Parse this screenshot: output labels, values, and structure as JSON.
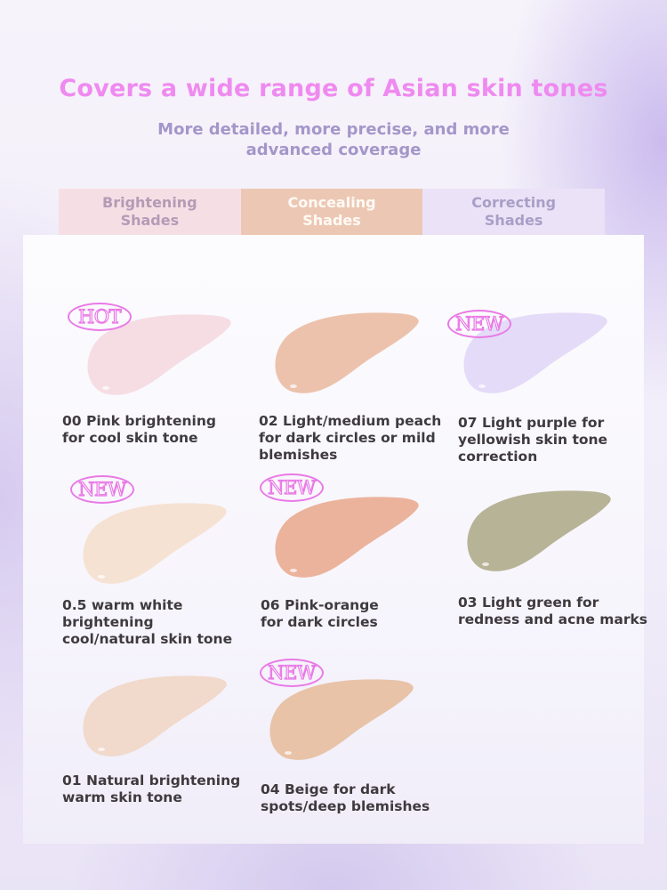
{
  "headline": "Covers a wide range of Asian skin tones",
  "subheadline": "More detailed, more precise, and more advanced coverage",
  "tabs": [
    {
      "label": "Brightening\nShades"
    },
    {
      "label": "Concealing\nShades"
    },
    {
      "label": "Correcting\nShades"
    }
  ],
  "shades": [
    {
      "label": "00 Pink brightening\nfor cool skin tone",
      "badge": "HOT",
      "color": "#f6dde4"
    },
    {
      "label": "02 Light/medium peach\nfor dark circles or mild\nblemishes",
      "badge": "",
      "color": "#ecc2ad"
    },
    {
      "label": "07 Light purple for\nyellowish skin tone\ncorrection",
      "badge": "NEW",
      "color": "#e4dbf8"
    },
    {
      "label": "0.5 warm white\nbrightening\ncool/natural skin tone",
      "badge": "NEW",
      "color": "#f6e2d3"
    },
    {
      "label": "06 Pink-orange\nfor dark circles",
      "badge": "NEW",
      "color": "#ebb39c"
    },
    {
      "label": "03 Light green for\nredness and acne marks",
      "badge": "",
      "color": "#b7b396"
    },
    {
      "label": "01 Natural brightening\nwarm skin tone",
      "badge": "",
      "color": "#f1d9cb"
    },
    {
      "label": "04 Beige for dark\nspots/deep blemishes",
      "badge": "NEW",
      "color": "#e8c3a8"
    }
  ]
}
